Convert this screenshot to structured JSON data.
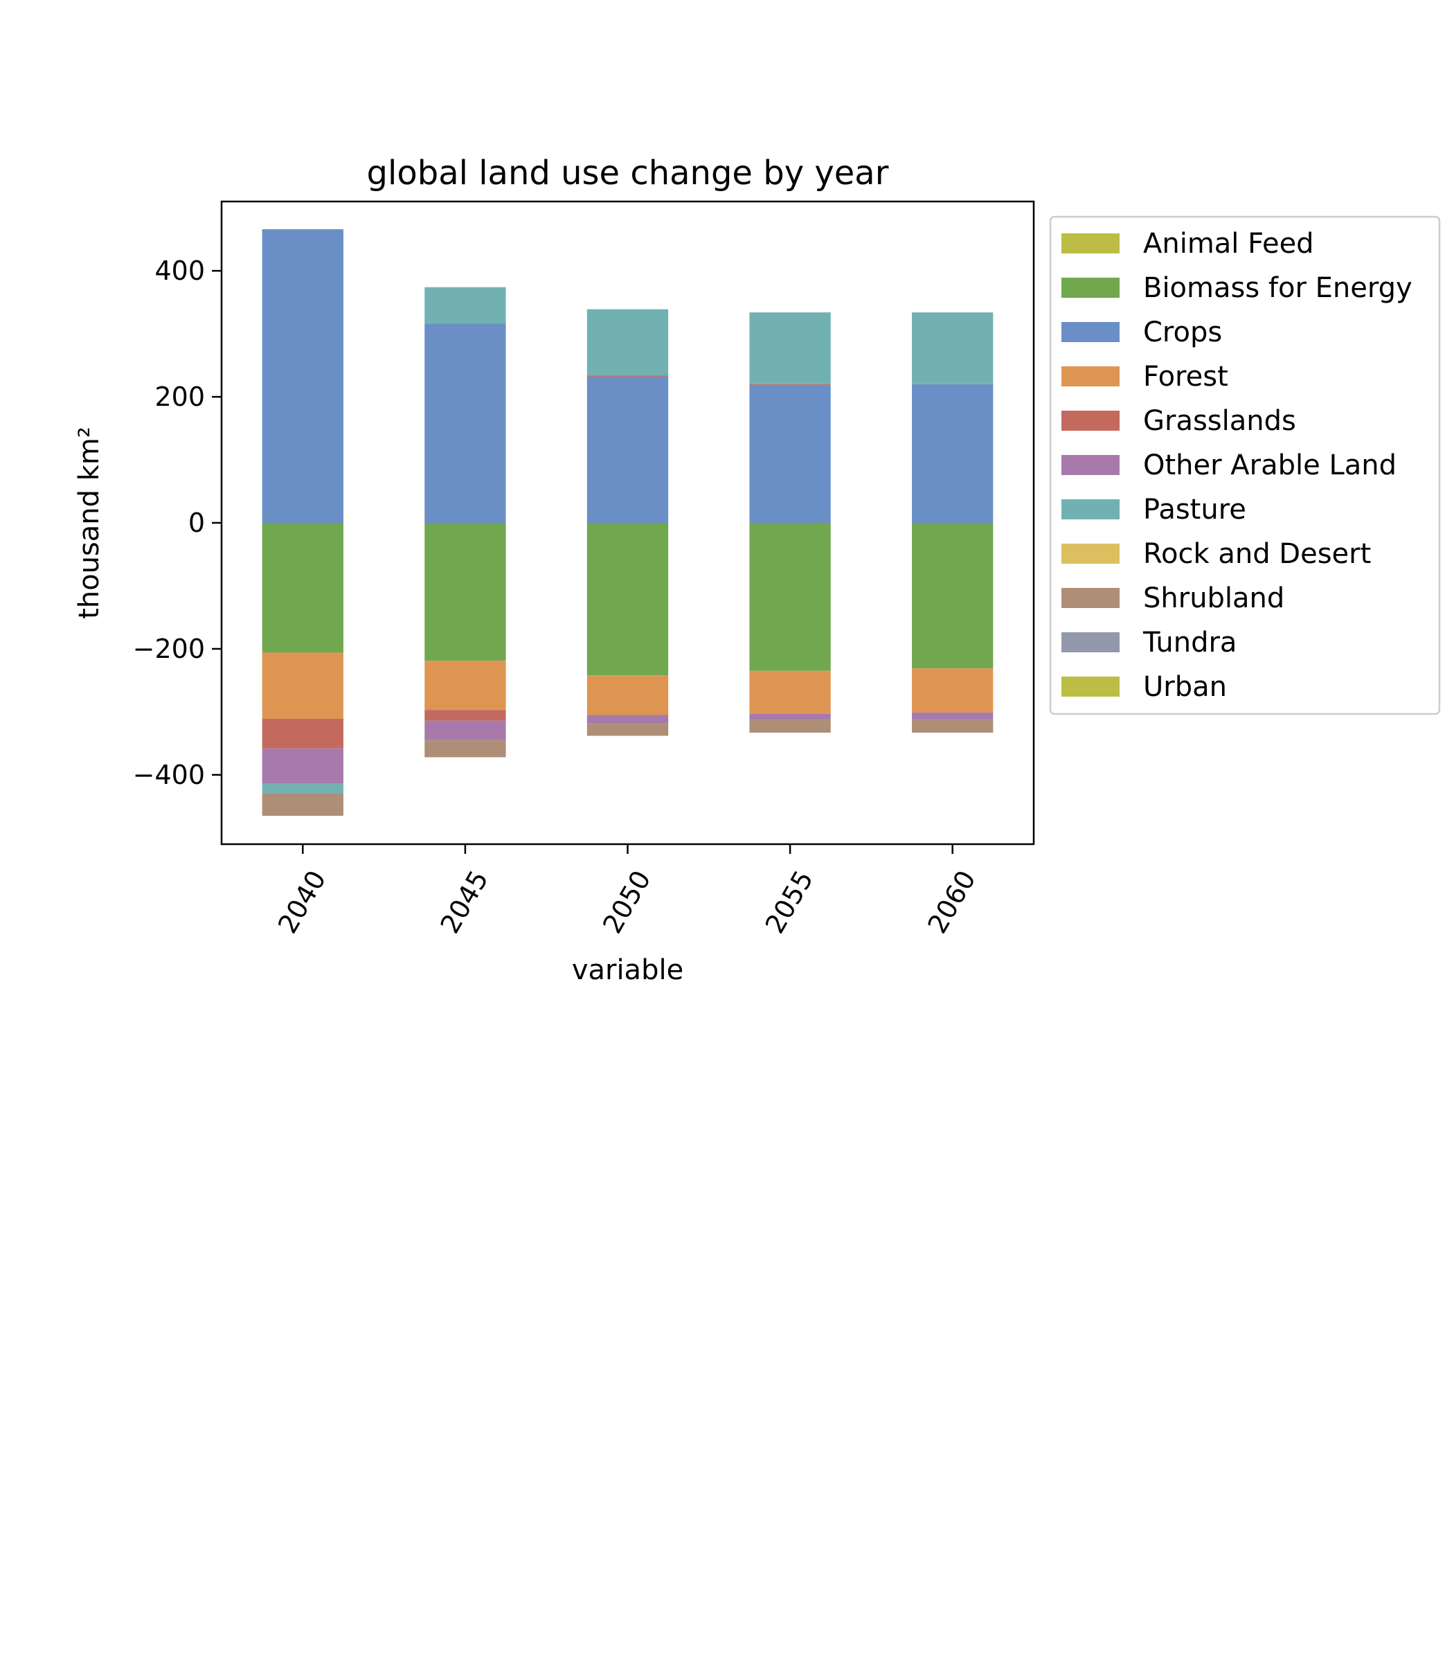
{
  "chart_data": {
    "type": "bar",
    "stacked": true,
    "title": "global land use change by year",
    "xlabel": "variable",
    "ylabel": "thousand km²",
    "ylim": [
      -510,
      510
    ],
    "yticks": [
      -400,
      -200,
      0,
      200,
      400
    ],
    "ytick_labels": [
      "−400",
      "−200",
      "0",
      "200",
      "400"
    ],
    "grid": false,
    "legend_placement": "outside right, upper",
    "categories": [
      "2040",
      "2045",
      "2050",
      "2055",
      "2060"
    ],
    "series": [
      {
        "name": "Animal Feed",
        "color": "#bcbd45",
        "values": [
          0,
          0,
          0,
          0,
          0
        ]
      },
      {
        "name": "Biomass for Energy",
        "color": "#71a74f",
        "values": [
          -206,
          -219,
          -242,
          -235,
          -231
        ]
      },
      {
        "name": "Crops",
        "color": "#6a8fc7",
        "values": [
          466,
          316,
          232,
          218,
          220
        ]
      },
      {
        "name": "Forest",
        "color": "#df9552",
        "values": [
          -105,
          -78,
          -63,
          -68,
          -70
        ]
      },
      {
        "name": "Grasslands",
        "color": "#c4695e",
        "values": [
          -47,
          -17,
          2,
          2,
          0
        ]
      },
      {
        "name": "Other Arable Land",
        "color": "#a77aab",
        "values": [
          -56,
          -31,
          -14,
          -10,
          -12
        ]
      },
      {
        "name": "Pasture",
        "color": "#72b1b1",
        "values": [
          -15,
          58,
          105,
          114,
          114
        ]
      },
      {
        "name": "Rock and Desert",
        "color": "#dcc060",
        "values": [
          0,
          0,
          0,
          0,
          0
        ]
      },
      {
        "name": "Shrubland",
        "color": "#ae8e77",
        "values": [
          -36,
          -27,
          -19,
          -20,
          -20
        ]
      },
      {
        "name": "Tundra",
        "color": "#9299aa",
        "values": [
          0,
          0,
          0,
          0,
          0
        ]
      },
      {
        "name": "Urban",
        "color": "#bcbd45",
        "values": [
          0,
          0,
          0,
          0,
          0
        ]
      }
    ]
  }
}
